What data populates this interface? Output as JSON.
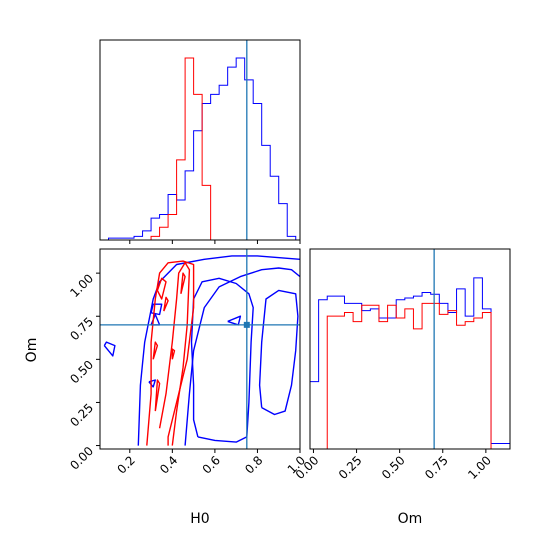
{
  "chart_data": {
    "type": "corner",
    "parameters": [
      "H0",
      "Om"
    ],
    "truths": {
      "H0": 0.75,
      "Om": 0.7
    },
    "colors": {
      "series_a": "#0000ff",
      "series_b": "#ff0000",
      "truth": "#1f77b4"
    },
    "xlim": {
      "H0": [
        0.06,
        1.0
      ],
      "Om": [
        -0.02,
        1.14
      ]
    },
    "ylim": {
      "Om": [
        -0.02,
        1.14
      ]
    },
    "ticks": {
      "H0": [
        "0.2",
        "0.4",
        "0.6",
        "0.8",
        "1.0"
      ],
      "Om_x": [
        "0.00",
        "0.25",
        "0.50",
        "0.75",
        "1.00"
      ],
      "Om_y": [
        "0.00",
        "0.25",
        "0.50",
        "0.75",
        "1.00"
      ]
    },
    "xlabels": {
      "H0": "H0",
      "Om": "Om"
    },
    "ylabel": "Om",
    "hist_H0": {
      "bin_edges": [
        0.06,
        0.1,
        0.14,
        0.18,
        0.22,
        0.26,
        0.3,
        0.34,
        0.38,
        0.42,
        0.46,
        0.5,
        0.54,
        0.58,
        0.62,
        0.66,
        0.7,
        0.74,
        0.78,
        0.82,
        0.86,
        0.9,
        0.94,
        0.98
      ],
      "series_a": [
        0.0,
        0.01,
        0.01,
        0.01,
        0.02,
        0.05,
        0.12,
        0.14,
        0.25,
        0.22,
        0.38,
        0.6,
        0.75,
        0.8,
        0.85,
        0.95,
        1.0,
        0.88,
        0.75,
        0.52,
        0.35,
        0.2,
        0.02
      ],
      "series_b": [
        0.0,
        0.0,
        0.0,
        0.0,
        0.0,
        0.0,
        0.02,
        0.07,
        0.14,
        0.44,
        1.0,
        0.8,
        0.3,
        0.0,
        0.0,
        0.0,
        0.0,
        0.0,
        0.0,
        0.0,
        0.0,
        0.0,
        0.0
      ]
    },
    "hist_Om": {
      "bin_edges": [
        -0.02,
        0.03,
        0.08,
        0.13,
        0.18,
        0.23,
        0.28,
        0.33,
        0.38,
        0.43,
        0.48,
        0.53,
        0.58,
        0.63,
        0.68,
        0.73,
        0.78,
        0.83,
        0.88,
        0.93,
        0.98,
        1.03,
        1.08,
        1.14
      ],
      "series_a": [
        0.37,
        0.82,
        0.84,
        0.84,
        0.8,
        0.8,
        0.76,
        0.77,
        0.72,
        0.72,
        0.82,
        0.83,
        0.84,
        0.86,
        0.85,
        0.8,
        0.75,
        0.88,
        0.73,
        0.94,
        0.77,
        0.03,
        0.03
      ],
      "series_b": [
        0.0,
        0.0,
        0.73,
        0.73,
        0.75,
        0.7,
        0.79,
        0.79,
        0.7,
        0.79,
        0.72,
        0.77,
        0.66,
        0.8,
        0.8,
        0.74,
        0.76,
        0.68,
        0.7,
        0.72,
        0.75,
        0.0,
        0.0
      ]
    },
    "contours": {
      "series_a": [
        [
          [
            0.24,
            0.0
          ],
          [
            0.25,
            0.35
          ],
          [
            0.26,
            0.48
          ],
          [
            0.27,
            0.6
          ],
          [
            0.31,
            0.85
          ],
          [
            0.34,
            0.95
          ],
          [
            0.42,
            1.05
          ],
          [
            0.55,
            1.08
          ],
          [
            0.68,
            1.1
          ],
          [
            0.8,
            1.1
          ],
          [
            1.0,
            1.08
          ]
        ],
        [
          [
            0.08,
            0.58
          ],
          [
            0.12,
            0.52
          ],
          [
            0.13,
            0.58
          ],
          [
            0.09,
            0.6
          ],
          [
            0.08,
            0.58
          ]
        ],
        [
          [
            0.46,
            0.0
          ],
          [
            0.48,
            0.3
          ],
          [
            0.5,
            0.55
          ],
          [
            0.55,
            0.8
          ],
          [
            0.62,
            0.92
          ],
          [
            0.72,
            0.98
          ],
          [
            0.82,
            1.02
          ],
          [
            0.9,
            1.03
          ],
          [
            0.96,
            1.02
          ],
          [
            1.0,
            0.98
          ]
        ],
        [
          [
            0.52,
            0.05
          ],
          [
            0.6,
            0.03
          ],
          [
            0.7,
            0.02
          ],
          [
            0.75,
            0.05
          ],
          [
            0.76,
            0.25
          ],
          [
            0.77,
            0.6
          ],
          [
            0.78,
            0.8
          ],
          [
            0.76,
            0.88
          ],
          [
            0.7,
            0.94
          ],
          [
            0.62,
            0.97
          ],
          [
            0.54,
            0.95
          ],
          [
            0.5,
            0.85
          ],
          [
            0.49,
            0.6
          ],
          [
            0.5,
            0.35
          ],
          [
            0.5,
            0.15
          ],
          [
            0.52,
            0.05
          ]
        ],
        [
          [
            0.82,
            0.22
          ],
          [
            0.88,
            0.18
          ],
          [
            0.93,
            0.2
          ],
          [
            0.96,
            0.35
          ],
          [
            0.98,
            0.55
          ],
          [
            0.99,
            0.75
          ],
          [
            0.98,
            0.88
          ],
          [
            0.9,
            0.9
          ],
          [
            0.84,
            0.85
          ],
          [
            0.82,
            0.6
          ],
          [
            0.81,
            0.35
          ],
          [
            0.82,
            0.22
          ]
        ],
        [
          [
            0.3,
            0.7
          ],
          [
            0.32,
            0.76
          ],
          [
            0.34,
            0.7
          ],
          [
            0.3,
            0.7
          ]
        ],
        [
          [
            0.29,
            0.37
          ],
          [
            0.31,
            0.34
          ],
          [
            0.32,
            0.38
          ],
          [
            0.29,
            0.37
          ]
        ],
        [
          [
            0.66,
            0.72
          ],
          [
            0.71,
            0.7
          ],
          [
            0.72,
            0.75
          ],
          [
            0.66,
            0.72
          ]
        ],
        [
          [
            0.3,
            0.77
          ],
          [
            0.34,
            0.76
          ],
          [
            0.35,
            0.82
          ],
          [
            0.31,
            0.82
          ],
          [
            0.3,
            0.77
          ]
        ]
      ],
      "series_b": [
        [
          [
            0.28,
            0.0
          ],
          [
            0.3,
            0.3
          ],
          [
            0.3,
            0.6
          ],
          [
            0.32,
            0.85
          ],
          [
            0.34,
            1.0
          ],
          [
            0.38,
            1.06
          ],
          [
            0.45,
            1.07
          ],
          [
            0.5,
            1.05
          ],
          [
            0.5,
            0.8
          ],
          [
            0.47,
            0.5
          ],
          [
            0.42,
            0.25
          ],
          [
            0.38,
            0.05
          ],
          [
            0.38,
            0.0
          ]
        ],
        [
          [
            0.34,
            0.1
          ],
          [
            0.37,
            0.3
          ],
          [
            0.4,
            0.6
          ],
          [
            0.42,
            0.85
          ],
          [
            0.43,
            1.0
          ],
          [
            0.46,
            1.06
          ],
          [
            0.48,
            1.02
          ],
          [
            0.47,
            0.7
          ],
          [
            0.45,
            0.45
          ],
          [
            0.42,
            0.2
          ],
          [
            0.4,
            0.0
          ]
        ],
        [
          [
            0.33,
            0.9
          ],
          [
            0.35,
            0.97
          ],
          [
            0.37,
            0.95
          ],
          [
            0.35,
            0.85
          ],
          [
            0.33,
            0.9
          ]
        ],
        [
          [
            0.31,
            0.5
          ],
          [
            0.33,
            0.58
          ],
          [
            0.32,
            0.6
          ],
          [
            0.31,
            0.5
          ]
        ],
        [
          [
            0.4,
            0.5
          ],
          [
            0.41,
            0.55
          ],
          [
            0.4,
            0.56
          ],
          [
            0.4,
            0.5
          ]
        ],
        [
          [
            0.44,
            0.88
          ],
          [
            0.46,
            0.98
          ],
          [
            0.45,
            1.0
          ],
          [
            0.44,
            0.88
          ]
        ],
        [
          [
            0.36,
            0.78
          ],
          [
            0.38,
            0.84
          ],
          [
            0.37,
            0.86
          ],
          [
            0.36,
            0.78
          ]
        ],
        [
          [
            0.32,
            0.2
          ],
          [
            0.34,
            0.36
          ],
          [
            0.33,
            0.38
          ],
          [
            0.32,
            0.2
          ]
        ]
      ]
    }
  }
}
